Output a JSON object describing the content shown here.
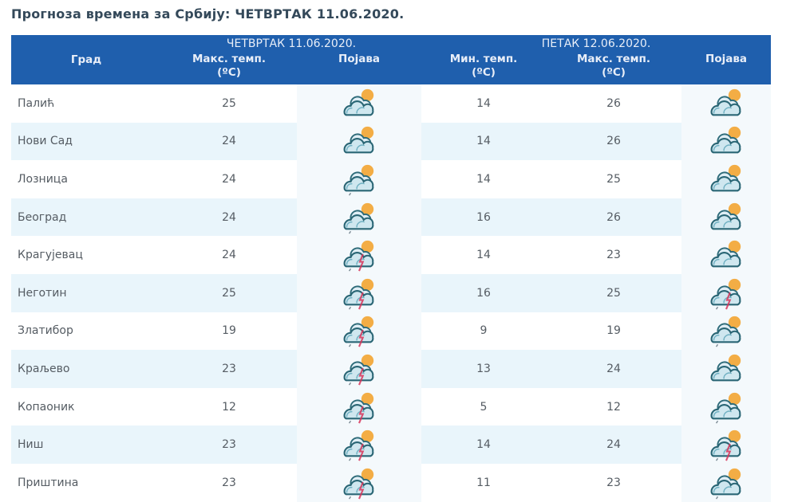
{
  "title": "Прогноза времена за Србију: ЧЕТВРТАК  11.06.2020.",
  "table": {
    "city_header": "Град",
    "day1": {
      "label": "ЧЕТВРТАК  11.06.2020.",
      "max_label": "Макс. темп.",
      "unit": "(ºC)",
      "phenomenon_label": "Појава"
    },
    "day2": {
      "label": "ПЕТАК  12.06.2020.",
      "min_label": "Мин. темп.",
      "max_label": "Макс. темп.",
      "unit": "(ºC)",
      "phenomenon_label": "Појава"
    },
    "rows": [
      {
        "city": "Палић",
        "d1_max": "25",
        "d1_icon": "partly-cloudy",
        "d2_min": "14",
        "d2_max": "26",
        "d2_icon": "partly-cloudy"
      },
      {
        "city": "Нови Сад",
        "d1_max": "24",
        "d1_icon": "partly-cloudy",
        "d2_min": "14",
        "d2_max": "26",
        "d2_icon": "partly-cloudy"
      },
      {
        "city": "Лозница",
        "d1_max": "24",
        "d1_icon": "showers",
        "d2_min": "14",
        "d2_max": "25",
        "d2_icon": "partly-cloudy"
      },
      {
        "city": "Београд",
        "d1_max": "24",
        "d1_icon": "showers",
        "d2_min": "16",
        "d2_max": "26",
        "d2_icon": "partly-cloudy"
      },
      {
        "city": "Крагујевац",
        "d1_max": "24",
        "d1_icon": "thunderstorm",
        "d2_min": "14",
        "d2_max": "23",
        "d2_icon": "partly-cloudy"
      },
      {
        "city": "Неготин",
        "d1_max": "25",
        "d1_icon": "thunderstorm",
        "d2_min": "16",
        "d2_max": "25",
        "d2_icon": "thunderstorm"
      },
      {
        "city": "Златибор",
        "d1_max": "19",
        "d1_icon": "thunderstorm",
        "d2_min": "9",
        "d2_max": "19",
        "d2_icon": "showers"
      },
      {
        "city": "Краљево",
        "d1_max": "23",
        "d1_icon": "thunderstorm",
        "d2_min": "13",
        "d2_max": "24",
        "d2_icon": "partly-cloudy"
      },
      {
        "city": "Копаоник",
        "d1_max": "12",
        "d1_icon": "thunderstorm",
        "d2_min": "5",
        "d2_max": "12",
        "d2_icon": "showers"
      },
      {
        "city": "Ниш",
        "d1_max": "23",
        "d1_icon": "thunderstorm",
        "d2_min": "14",
        "d2_max": "24",
        "d2_icon": "thunderstorm"
      },
      {
        "city": "Приштина",
        "d1_max": "23",
        "d1_icon": "thunderstorm",
        "d2_min": "11",
        "d2_max": "23",
        "d2_icon": "showers"
      }
    ]
  },
  "colors": {
    "header_bg": "#1f5fad",
    "header_text": "#e8eef8",
    "title_text": "#34495a",
    "row_alt_bg": "#e9f5fb",
    "cell_text": "#555c63"
  }
}
